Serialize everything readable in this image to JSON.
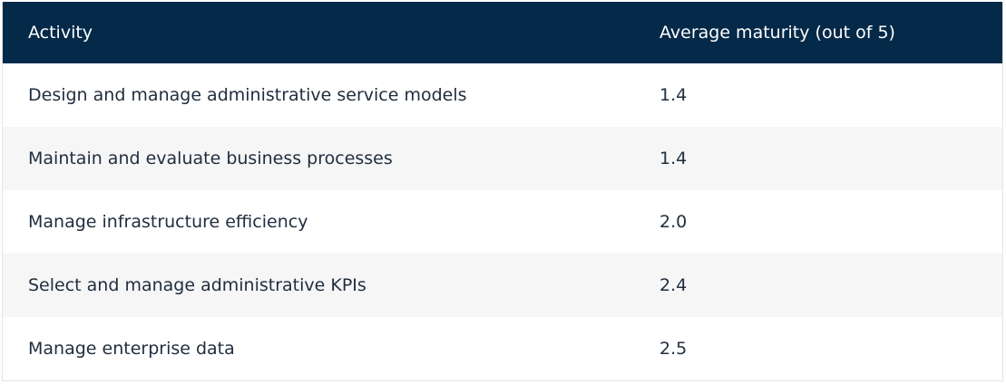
{
  "table": {
    "headers": {
      "activity": "Activity",
      "maturity": "Average maturity (out of 5)"
    },
    "rows": [
      {
        "activity": "Design and manage administrative service models",
        "maturity": "1.4"
      },
      {
        "activity": "Maintain and evaluate business processes",
        "maturity": "1.4"
      },
      {
        "activity": "Manage infrastructure efficiency",
        "maturity": "2.0"
      },
      {
        "activity": "Select and manage administrative KPIs",
        "maturity": "2.4"
      },
      {
        "activity": "Manage enterprise data",
        "maturity": "2.5"
      }
    ]
  },
  "colors": {
    "header_background": "#052948",
    "header_text": "#ffffff",
    "row_alt_background": "#f6f6f7"
  }
}
